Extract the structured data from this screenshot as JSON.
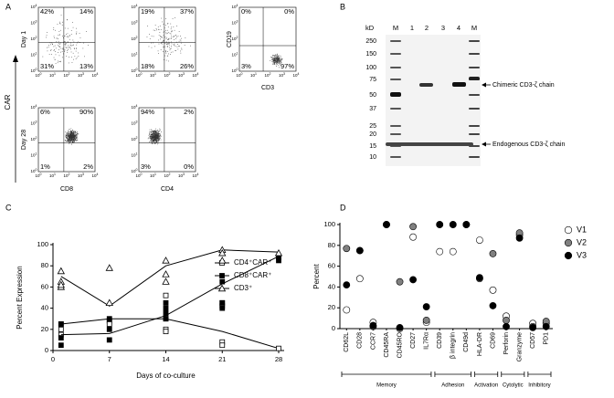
{
  "panel_labels": [
    "A",
    "B",
    "C",
    "D"
  ],
  "flow": {
    "axis_label": "CAR",
    "tick_base": "10",
    "tick_exponents": [
      "0",
      "1",
      "2",
      "3",
      "4"
    ],
    "row_labels": [
      "Day 1",
      "Day 28"
    ],
    "column_labels": [
      "CD8",
      "CD4"
    ],
    "control_x_label": "CD3",
    "control_y_label": "CD19",
    "plots": [
      [
        "42%",
        "14%",
        "31%",
        "13%"
      ],
      [
        "19%",
        "37%",
        "18%",
        "26%"
      ],
      [
        "0%",
        "0%",
        "3%",
        "97%"
      ],
      [
        "6%",
        "90%",
        "1%",
        "2%"
      ],
      [
        "94%",
        "2%",
        "3%",
        "0%"
      ]
    ]
  },
  "blot": {
    "unit_label": "kD",
    "lanes": [
      "M",
      "1",
      "2",
      "3",
      "4",
      "M"
    ],
    "markers": [
      250,
      150,
      100,
      75,
      50,
      37,
      25,
      20,
      15,
      10
    ],
    "annotations": [
      "Chimeric CD3-ζ chain",
      "Endogenous CD3-ζ chain"
    ]
  },
  "chart_data": [
    {
      "type": "scatter-line",
      "x_label": "Days of co-culture",
      "y_label": "Percent Expression",
      "xlim": [
        0,
        28
      ],
      "xticks": [
        0,
        7,
        14,
        21,
        28
      ],
      "ylim": [
        0,
        100
      ],
      "yticks": [
        0,
        20,
        40,
        60,
        80,
        100
      ],
      "series": [
        {
          "name": "CD4⁺CAR⁺",
          "marker": "open-square",
          "color": "#000000",
          "x": [
            1,
            1,
            1,
            7,
            7,
            14,
            14,
            14,
            14,
            21,
            21,
            21,
            21,
            28
          ],
          "values": [
            20,
            25,
            15,
            28,
            25,
            52,
            30,
            20,
            18,
            45,
            42,
            8,
            5,
            2
          ],
          "mean_x": [
            1,
            7,
            14,
            21,
            28
          ],
          "mean_values": [
            25,
            30,
            30,
            18,
            2
          ]
        },
        {
          "name": "CD8⁺CAR⁺",
          "marker": "filled-square",
          "color": "#000000",
          "x": [
            1,
            1,
            1,
            7,
            7,
            7,
            14,
            14,
            14,
            14,
            21,
            21,
            21,
            28,
            28
          ],
          "values": [
            12,
            5,
            25,
            30,
            20,
            10,
            40,
            35,
            45,
            30,
            65,
            40,
            45,
            88,
            85
          ],
          "mean_x": [
            1,
            7,
            14,
            21,
            28
          ],
          "mean_values": [
            15,
            16,
            33,
            63,
            89
          ]
        },
        {
          "name": "CD3⁺",
          "marker": "open-triangle",
          "color": "#000000",
          "x": [
            1,
            1,
            1,
            1,
            7,
            7,
            14,
            14,
            14,
            21,
            21,
            21,
            28
          ],
          "values": [
            75,
            65,
            60,
            62,
            78,
            45,
            85,
            72,
            65,
            95,
            92,
            85,
            92
          ],
          "mean_x": [
            1,
            7,
            14,
            21,
            28
          ],
          "mean_values": [
            70,
            42,
            80,
            95,
            93
          ]
        }
      ]
    },
    {
      "type": "dot",
      "y_label": "Percent",
      "ylim": [
        0,
        100
      ],
      "yticks": [
        0,
        20,
        40,
        60,
        80,
        100
      ],
      "categories": [
        "CD62L",
        "CD28",
        "CCR7",
        "CD45RA",
        "CD45RO",
        "CD27",
        "IL7Rα",
        "CD39",
        "β integrin",
        "CD49d",
        "HLA-DR",
        "CD69",
        "Perforin",
        "Granzyme",
        "CD57",
        "PD1"
      ],
      "series": [
        {
          "name": "V1",
          "color": "#ffffff",
          "values": [
            18,
            48,
            6,
            100,
            0,
            88,
            6,
            74,
            74,
            100,
            85,
            37,
            12,
            90,
            5,
            5
          ]
        },
        {
          "name": "V2",
          "color": "#808080",
          "values": [
            77,
            75,
            2,
            100,
            45,
            98,
            8,
            100,
            100,
            100,
            48,
            72,
            8,
            92,
            2,
            7
          ]
        },
        {
          "name": "V3",
          "color": "#000000",
          "values": [
            42,
            75,
            3,
            100,
            1,
            47,
            21,
            100,
            100,
            100,
            49,
            22,
            2,
            87,
            1,
            2
          ]
        }
      ],
      "groups": [
        "Memory",
        "Adhesion",
        "Activation",
        "Cytolytic",
        "Inhibitory"
      ]
    }
  ]
}
